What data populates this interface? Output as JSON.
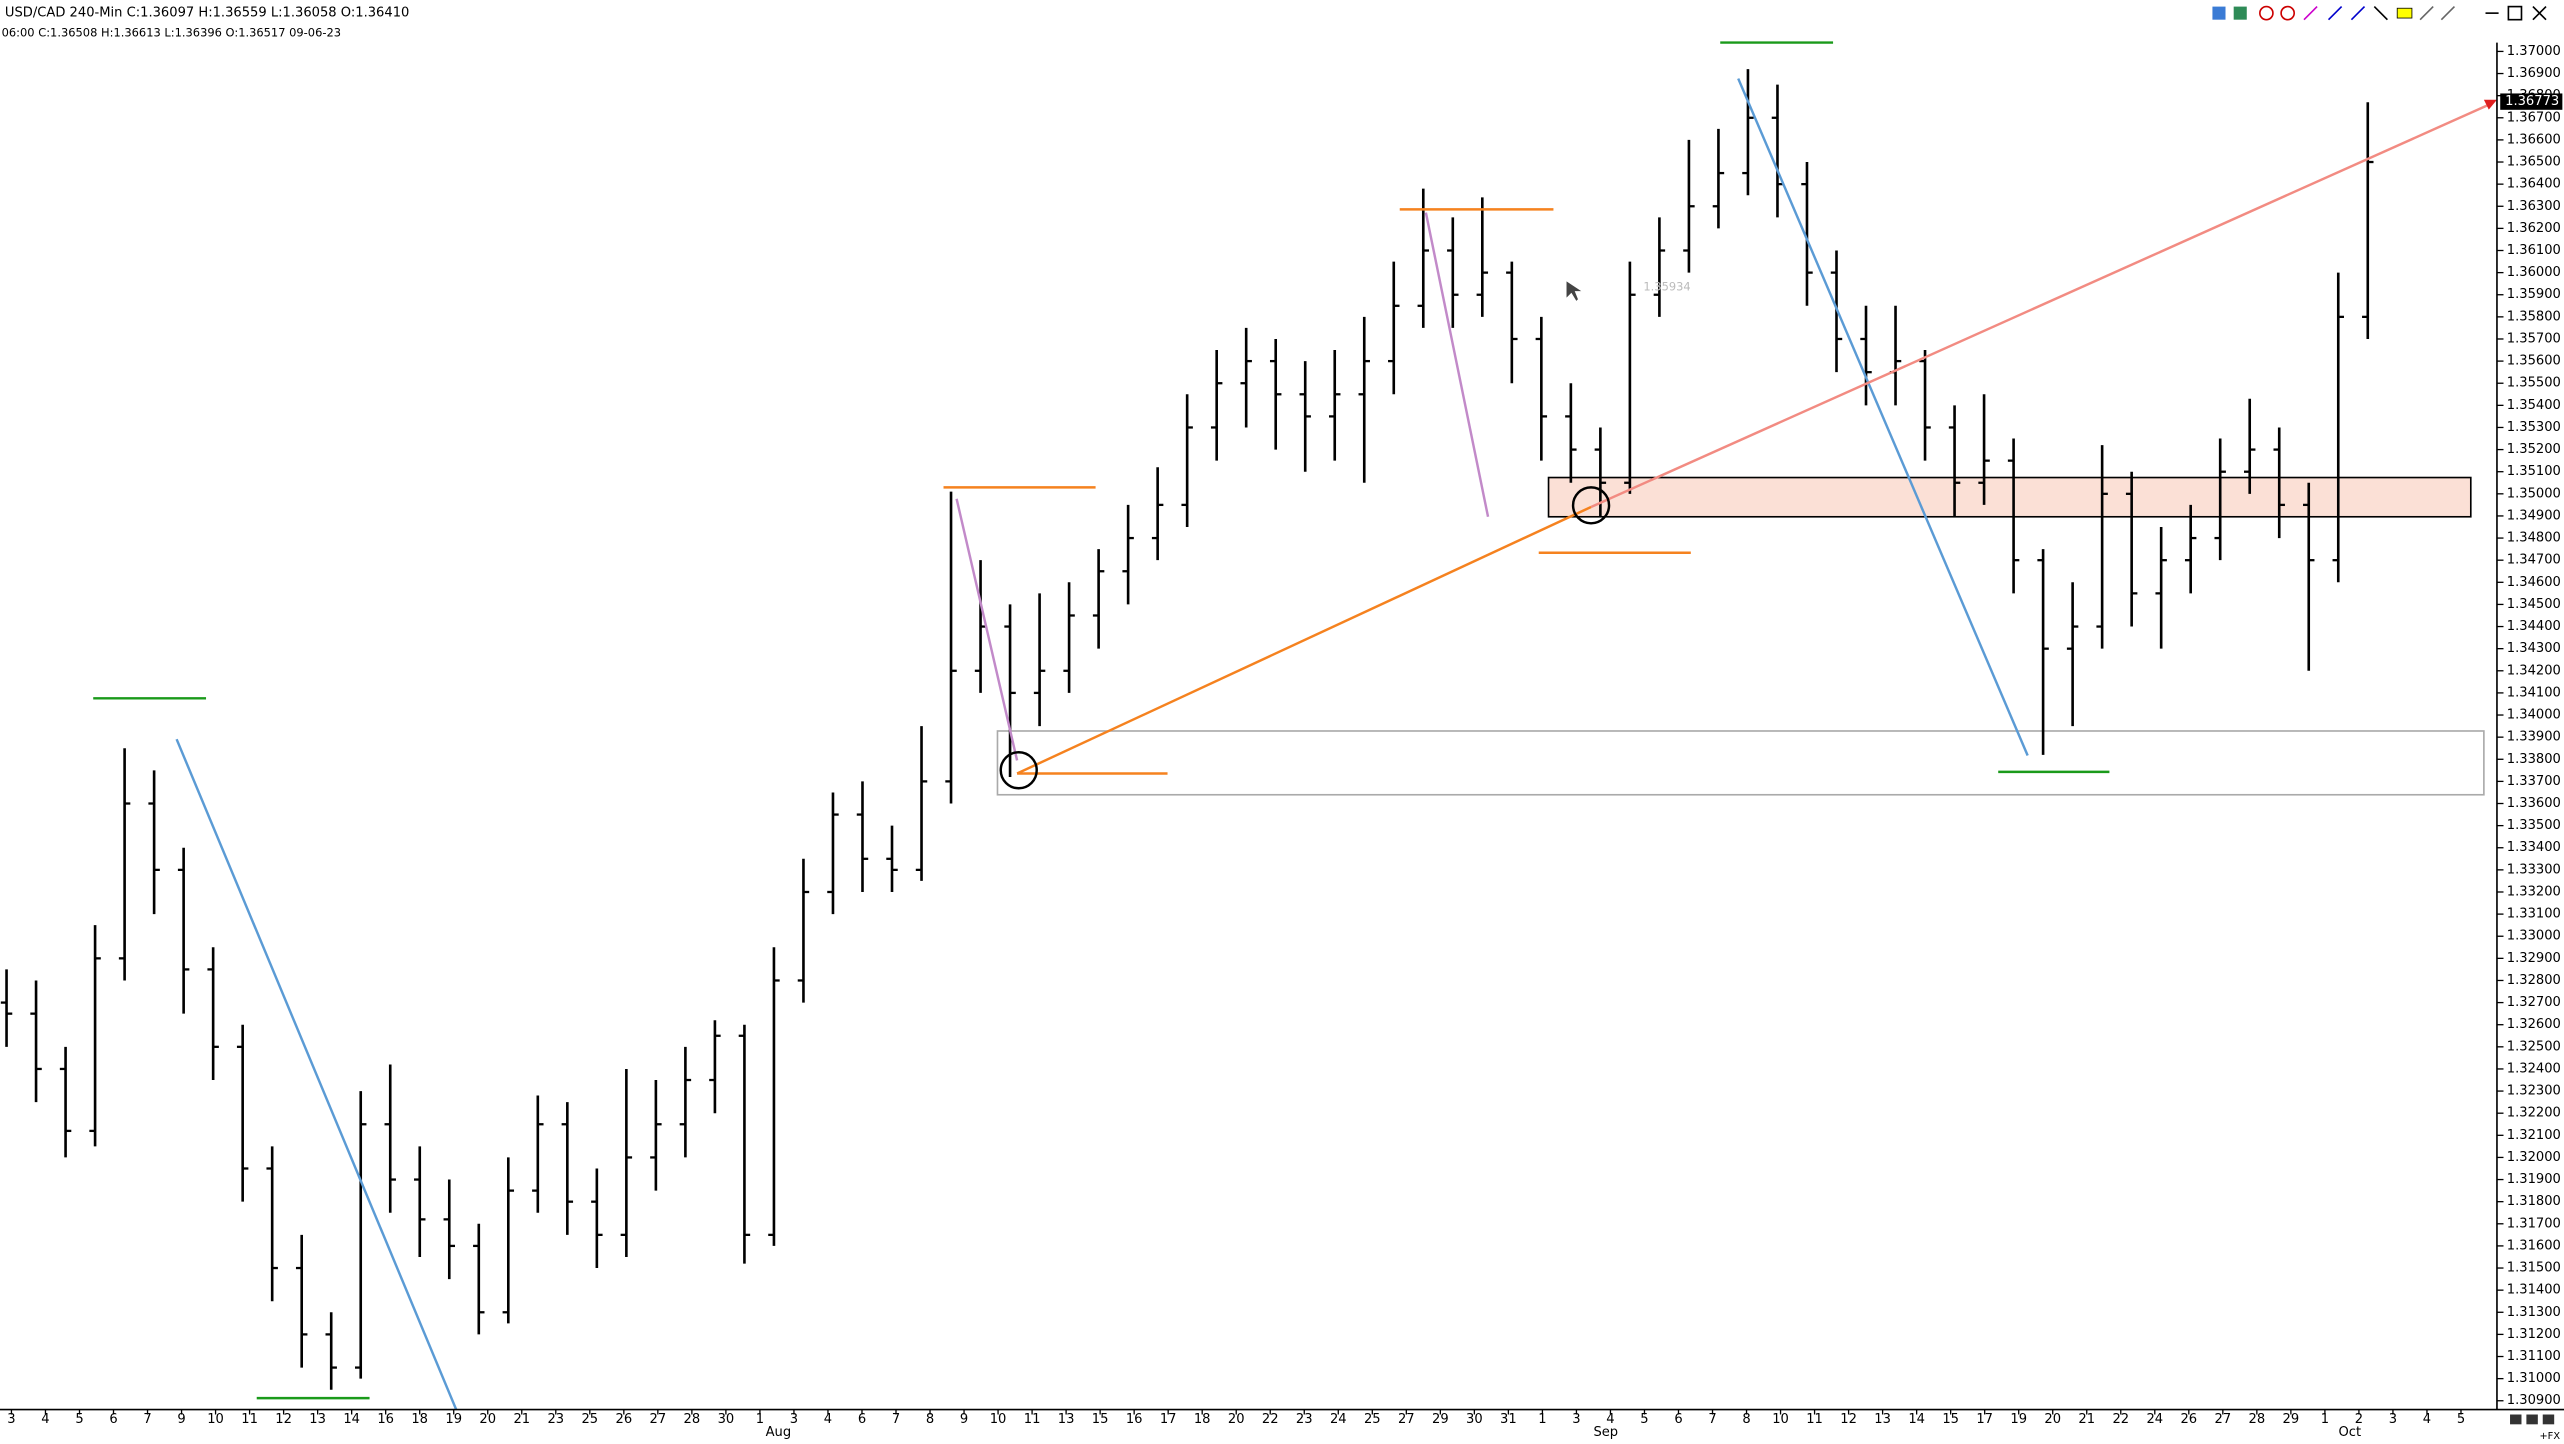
{
  "header": {
    "line1": "USD/CAD  240-Min  C:1.36097  H:1.36559  L:1.36058  O:1.36410",
    "line2": "06:00  C:1.36508  H:1.36613  L:1.36396  O:1.36517  09-06-23"
  },
  "footer_tag": "+FX",
  "chart_data": {
    "type": "ohlc",
    "open": [
      1.327,
      1.3265,
      1.324,
      1.3212,
      1.329,
      1.336,
      1.333,
      1.3285,
      1.325,
      1.3195,
      1.315,
      1.312,
      1.3105,
      1.3215,
      1.319,
      1.3172,
      1.316,
      1.313,
      1.3185,
      1.3215,
      1.318,
      1.3165,
      1.32,
      1.3215,
      1.3235,
      1.3255,
      1.3165,
      1.328,
      1.332,
      1.3355,
      1.3335,
      1.333,
      1.337,
      1.342,
      1.344,
      1.341,
      1.342,
      1.3445,
      1.3465,
      1.348,
      1.3495,
      1.353,
      1.355,
      1.356,
      1.3545,
      1.3535,
      1.3545,
      1.356,
      1.3585,
      1.361,
      1.359,
      1.36,
      1.357,
      1.3535,
      1.352,
      1.3505,
      1.359,
      1.361,
      1.363,
      1.3645,
      1.367,
      1.364,
      1.36,
      1.357,
      1.3555,
      1.356,
      1.353,
      1.3505,
      1.3515,
      1.347,
      1.343,
      1.344,
      1.35,
      1.3455,
      1.347,
      1.348,
      1.351,
      1.352,
      1.3495,
      1.347,
      1.358
    ],
    "high": [
      1.3285,
      1.328,
      1.325,
      1.3305,
      1.3385,
      1.3375,
      1.334,
      1.3295,
      1.326,
      1.3205,
      1.3165,
      1.313,
      1.323,
      1.3242,
      1.3205,
      1.319,
      1.317,
      1.32,
      1.3228,
      1.3225,
      1.3195,
      1.324,
      1.3235,
      1.325,
      1.3262,
      1.326,
      1.3295,
      1.3335,
      1.3365,
      1.337,
      1.335,
      1.3395,
      1.3501,
      1.347,
      1.345,
      1.3455,
      1.346,
      1.3475,
      1.3495,
      1.3512,
      1.3545,
      1.3565,
      1.3575,
      1.357,
      1.356,
      1.3565,
      1.358,
      1.3605,
      1.3638,
      1.3625,
      1.3634,
      1.3605,
      1.358,
      1.355,
      1.353,
      1.3605,
      1.3625,
      1.366,
      1.3665,
      1.3692,
      1.3685,
      1.365,
      1.361,
      1.3585,
      1.3585,
      1.3565,
      1.354,
      1.3545,
      1.3525,
      1.3475,
      1.346,
      1.3522,
      1.351,
      1.3485,
      1.3495,
      1.3525,
      1.3543,
      1.353,
      1.3505,
      1.36,
      1.3677
    ],
    "low": [
      1.325,
      1.3225,
      1.32,
      1.3205,
      1.328,
      1.331,
      1.3265,
      1.3235,
      1.318,
      1.3135,
      1.3105,
      1.3095,
      1.31,
      1.3175,
      1.3155,
      1.3145,
      1.312,
      1.3125,
      1.3175,
      1.3165,
      1.315,
      1.3155,
      1.3185,
      1.32,
      1.322,
      1.3152,
      1.316,
      1.327,
      1.331,
      1.332,
      1.332,
      1.3325,
      1.336,
      1.341,
      1.3372,
      1.3395,
      1.341,
      1.343,
      1.345,
      1.347,
      1.3485,
      1.3515,
      1.353,
      1.352,
      1.351,
      1.3515,
      1.3505,
      1.3545,
      1.3575,
      1.3575,
      1.358,
      1.355,
      1.3515,
      1.3505,
      1.349,
      1.35,
      1.358,
      1.36,
      1.362,
      1.3635,
      1.3625,
      1.3585,
      1.3555,
      1.354,
      1.354,
      1.3515,
      1.349,
      1.3495,
      1.3455,
      1.3382,
      1.3395,
      1.343,
      1.344,
      1.343,
      1.3455,
      1.347,
      1.35,
      1.348,
      1.342,
      1.346,
      1.357
    ],
    "close": [
      1.3265,
      1.324,
      1.3212,
      1.329,
      1.336,
      1.333,
      1.3285,
      1.325,
      1.3195,
      1.315,
      1.312,
      1.3105,
      1.3215,
      1.319,
      1.3172,
      1.316,
      1.313,
      1.3185,
      1.3215,
      1.318,
      1.3165,
      1.32,
      1.3215,
      1.3235,
      1.3255,
      1.3165,
      1.328,
      1.332,
      1.3355,
      1.3335,
      1.333,
      1.337,
      1.342,
      1.344,
      1.341,
      1.342,
      1.3445,
      1.3465,
      1.348,
      1.3495,
      1.353,
      1.355,
      1.356,
      1.3545,
      1.3535,
      1.3545,
      1.356,
      1.3585,
      1.361,
      1.359,
      1.36,
      1.357,
      1.3535,
      1.352,
      1.3505,
      1.359,
      1.361,
      1.363,
      1.3645,
      1.367,
      1.364,
      1.36,
      1.357,
      1.3555,
      1.356,
      1.353,
      1.3505,
      1.3515,
      1.347,
      1.343,
      1.344,
      1.35,
      1.3455,
      1.347,
      1.348,
      1.351,
      1.352,
      1.3495,
      1.347,
      1.358,
      1.365
    ],
    "color": "#000000",
    "ylim": [
      1.3086,
      1.3704
    ],
    "yticks": [
      {
        "value": 1.309,
        "label": "1.30900"
      },
      {
        "value": 1.31,
        "label": "1.31000"
      },
      {
        "value": 1.311,
        "label": "1.31100"
      },
      {
        "value": 1.312,
        "label": "1.31200"
      },
      {
        "value": 1.313,
        "label": "1.31300"
      },
      {
        "value": 1.314,
        "label": "1.31400"
      },
      {
        "value": 1.315,
        "label": "1.31500"
      },
      {
        "value": 1.316,
        "label": "1.31600"
      },
      {
        "value": 1.317,
        "label": "1.31700"
      },
      {
        "value": 1.318,
        "label": "1.31800"
      },
      {
        "value": 1.319,
        "label": "1.31900"
      },
      {
        "value": 1.32,
        "label": "1.32000"
      },
      {
        "value": 1.321,
        "label": "1.32100"
      },
      {
        "value": 1.322,
        "label": "1.32200"
      },
      {
        "value": 1.323,
        "label": "1.32300"
      },
      {
        "value": 1.324,
        "label": "1.32400"
      },
      {
        "value": 1.325,
        "label": "1.32500"
      },
      {
        "value": 1.326,
        "label": "1.32600"
      },
      {
        "value": 1.327,
        "label": "1.32700"
      },
      {
        "value": 1.328,
        "label": "1.32800"
      },
      {
        "value": 1.329,
        "label": "1.32900"
      },
      {
        "value": 1.33,
        "label": "1.33000"
      },
      {
        "value": 1.331,
        "label": "1.33100"
      },
      {
        "value": 1.332,
        "label": "1.33200"
      },
      {
        "value": 1.333,
        "label": "1.33300"
      },
      {
        "value": 1.334,
        "label": "1.33400"
      },
      {
        "value": 1.335,
        "label": "1.33500"
      },
      {
        "value": 1.336,
        "label": "1.33600"
      },
      {
        "value": 1.337,
        "label": "1.33700"
      },
      {
        "value": 1.338,
        "label": "1.33800"
      },
      {
        "value": 1.339,
        "label": "1.33900"
      },
      {
        "value": 1.34,
        "label": "1.34000"
      },
      {
        "value": 1.341,
        "label": "1.34100"
      },
      {
        "value": 1.342,
        "label": "1.34200"
      },
      {
        "value": 1.343,
        "label": "1.34300"
      },
      {
        "value": 1.344,
        "label": "1.34400"
      },
      {
        "value": 1.345,
        "label": "1.34500"
      },
      {
        "value": 1.346,
        "label": "1.34600"
      },
      {
        "value": 1.347,
        "label": "1.34700"
      },
      {
        "value": 1.348,
        "label": "1.34800"
      },
      {
        "value": 1.349,
        "label": "1.34900"
      },
      {
        "value": 1.35,
        "label": "1.35000"
      },
      {
        "value": 1.351,
        "label": "1.35100"
      },
      {
        "value": 1.352,
        "label": "1.35200"
      },
      {
        "value": 1.353,
        "label": "1.35300"
      },
      {
        "value": 1.354,
        "label": "1.35400"
      },
      {
        "value": 1.355,
        "label": "1.35500"
      },
      {
        "value": 1.356,
        "label": "1.35600"
      },
      {
        "value": 1.357,
        "label": "1.35700"
      },
      {
        "value": 1.358,
        "label": "1.35800"
      },
      {
        "value": 1.359,
        "label": "1.35900"
      },
      {
        "value": 1.36,
        "label": "1.36000"
      },
      {
        "value": 1.361,
        "label": "1.36100"
      },
      {
        "value": 1.362,
        "label": "1.36200"
      },
      {
        "value": 1.363,
        "label": "1.36300"
      },
      {
        "value": 1.364,
        "label": "1.36400"
      },
      {
        "value": 1.365,
        "label": "1.36500"
      },
      {
        "value": 1.366,
        "label": "1.36600"
      },
      {
        "value": 1.367,
        "label": "1.36700"
      },
      {
        "value": 1.368,
        "label": "1.36800"
      },
      {
        "value": 1.369,
        "label": "1.36900"
      },
      {
        "value": 1.37,
        "label": "1.37000"
      }
    ],
    "last_price": 1.36773,
    "annotation": 1.35934,
    "x_labels": [
      "3",
      "4",
      "5",
      "6",
      "7",
      "9",
      "10",
      "11",
      "12",
      "13",
      "14",
      "16",
      "18",
      "19",
      "20",
      "21",
      "23",
      "25",
      "26",
      "27",
      "28",
      "30",
      "1",
      "3",
      "4",
      "6",
      "7",
      "8",
      "9",
      "10",
      "11",
      "13",
      "15",
      "16",
      "17",
      "18",
      "20",
      "22",
      "23",
      "24",
      "25",
      "27",
      "29",
      "30",
      "31",
      "1",
      "3",
      "4",
      "5",
      "6",
      "7",
      "8",
      "10",
      "11",
      "12",
      "13",
      "14",
      "15",
      "17",
      "19",
      "20",
      "21",
      "22",
      "24",
      "26",
      "27",
      "28",
      "29",
      "1",
      "2",
      "3",
      "4",
      "5"
    ],
    "months": [
      "Aug",
      "Sep",
      "Oct"
    ]
  }
}
